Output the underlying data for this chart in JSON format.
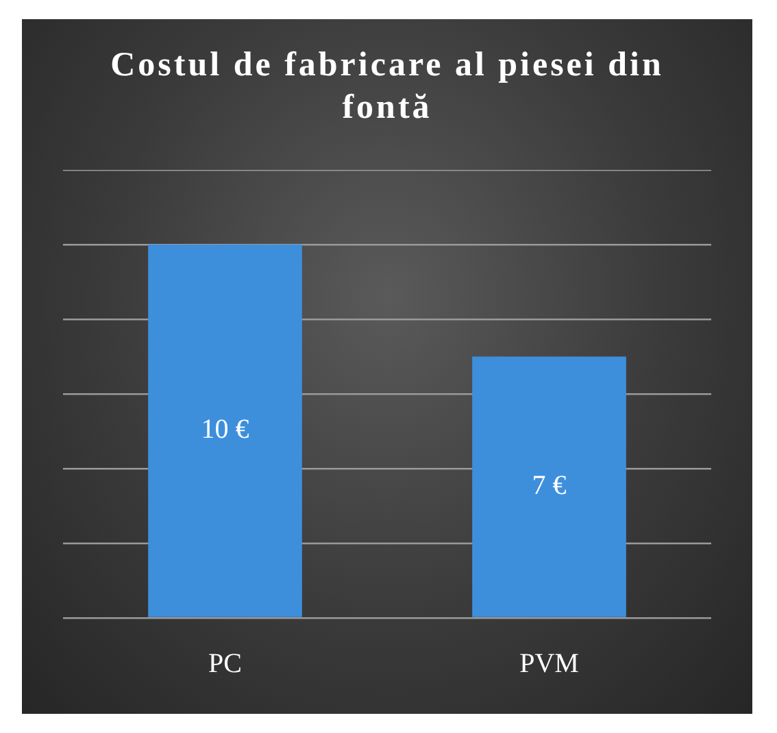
{
  "chart_data": {
    "type": "bar",
    "title": "Costul de fabricare al piesei din fontă",
    "categories": [
      "PC",
      "PVM"
    ],
    "values": [
      10,
      7
    ],
    "value_labels": [
      "10 €",
      "7 €"
    ],
    "color": "#3d8fdc",
    "ylim": [
      0,
      12
    ],
    "yticks": [
      {
        "value": 0,
        "label": null
      },
      {
        "value": 2,
        "label": null
      },
      {
        "value": 4,
        "label": null
      },
      {
        "value": 6,
        "label": null
      },
      {
        "value": 8,
        "label": null
      },
      {
        "value": 10,
        "label": null
      },
      {
        "value": 12,
        "label": null
      }
    ],
    "grid": "y",
    "tick_labels": "x",
    "legend": false
  }
}
